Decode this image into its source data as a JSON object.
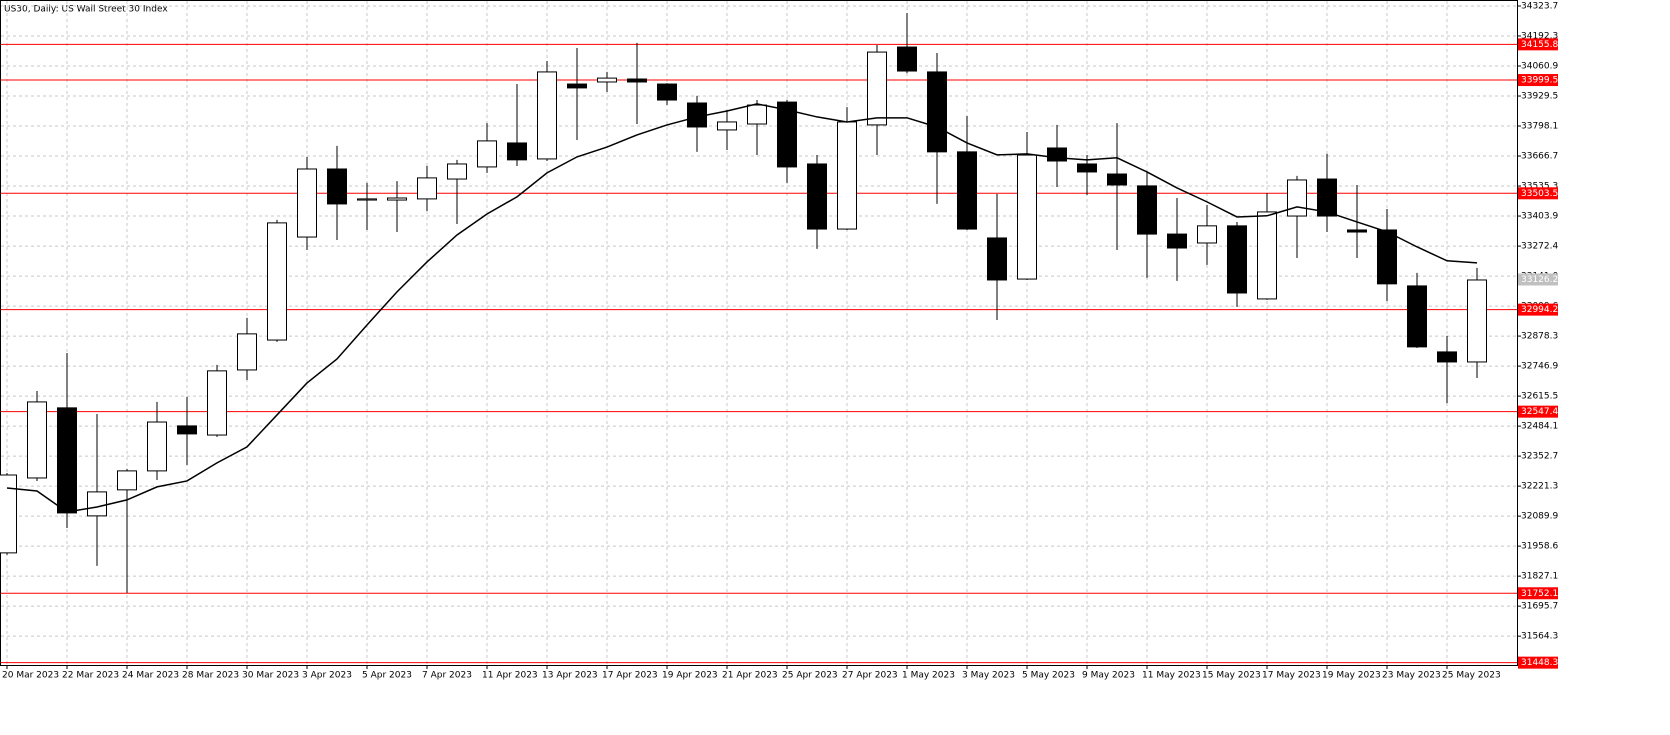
{
  "chart_data": {
    "type": "candlestick",
    "title": "US30, Daily:  US Wall Street 30 Index",
    "x": [
      "20 Mar 2023",
      null,
      "22 Mar 2023",
      null,
      "24 Mar 2023",
      null,
      "28 Mar 2023",
      null,
      "30 Mar 2023",
      null,
      "3 Apr 2023",
      null,
      "5 Apr 2023",
      null,
      "7 Apr 2023",
      null,
      "11 Apr 2023",
      null,
      "13 Apr 2023",
      null,
      "17 Apr 2023",
      null,
      "19 Apr 2023",
      null,
      "21 Apr 2023",
      null,
      "25 Apr 2023",
      null,
      "27 Apr 2023",
      null,
      "1 May 2023",
      null,
      "3 May 2023",
      null,
      "5 May 2023",
      null,
      "9 May 2023",
      null,
      "11 May 2023",
      null,
      "15 May 2023",
      null,
      "17 May 2023",
      null,
      "19 May 2023",
      null,
      "23 May 2023",
      null,
      "25 May 2023",
      null
    ],
    "open": [
      31929,
      32257,
      32564,
      32091,
      32205,
      32288,
      32485,
      32445,
      32730,
      32861,
      33312,
      33610,
      33474,
      33474,
      33479,
      33566,
      33619,
      33724,
      33654,
      33982,
      33991,
      34004,
      33982,
      33899,
      33781,
      33807,
      33903,
      33632,
      33347,
      33803,
      34144,
      34035,
      33685,
      33308,
      33128,
      33702,
      33632,
      33588,
      33536,
      33325,
      33286,
      33361,
      33041,
      33404,
      33566,
      33343,
      33343,
      33098,
      32809,
      32765
    ],
    "high": [
      32279,
      32638,
      32804,
      32537,
      32297,
      32590,
      32612,
      32752,
      32958,
      33387,
      33663,
      33711,
      33549,
      33557,
      33623,
      33650,
      33811,
      33982,
      34083,
      34140,
      34035,
      34162,
      33986,
      33930,
      33868,
      33912,
      33912,
      33671,
      33881,
      34153,
      34293,
      34118,
      33842,
      33501,
      33772,
      33803,
      33671,
      33811,
      33597,
      33483,
      33453,
      33378,
      33505,
      33580,
      33676,
      33540,
      33435,
      33155,
      32879,
      33177
    ],
    "low": [
      31920,
      32244,
      32038,
      31872,
      31754,
      32248,
      32314,
      32437,
      32686,
      32853,
      33255,
      33299,
      33343,
      33334,
      33426,
      33369,
      33593,
      33623,
      33645,
      33737,
      33947,
      33807,
      33890,
      33685,
      33693,
      33671,
      33549,
      33260,
      33343,
      33671,
      34030,
      33457,
      33343,
      32949,
      33124,
      33531,
      33496,
      33255,
      33133,
      33120,
      33190,
      33006,
      33037,
      33220,
      33334,
      33220,
      33032,
      32826,
      32585,
      32695
    ],
    "close": [
      32270,
      32590,
      32104,
      32196,
      32288,
      32502,
      32450,
      32726,
      32888,
      33374,
      33610,
      33457,
      33479,
      33483,
      33571,
      33632,
      33733,
      33650,
      34035,
      33965,
      34008,
      33991,
      33912,
      33794,
      33816,
      33890,
      33619,
      33347,
      33816,
      34122,
      34039,
      33685,
      33347,
      33124,
      33671,
      33645,
      33597,
      33540,
      33325,
      33264,
      33361,
      33067,
      33422,
      33562,
      33404,
      33334,
      33107,
      32831,
      32765,
      33124
    ],
    "ma": {
      "color": "#000000",
      "values": [
        32213,
        32200,
        32108,
        32130,
        32161,
        32218,
        32244,
        32323,
        32393,
        32533,
        32673,
        32778,
        32927,
        33072,
        33203,
        33321,
        33413,
        33488,
        33593,
        33663,
        33706,
        33759,
        33803,
        33838,
        33864,
        33895,
        33869,
        33838,
        33816,
        33834,
        33834,
        33794,
        33724,
        33672,
        33676,
        33659,
        33650,
        33659,
        33597,
        33527,
        33466,
        33400,
        33405,
        33444,
        33422,
        33378,
        33335,
        33269,
        33208,
        33199
      ]
    },
    "up_color": "#ffffff",
    "down_color": "#000000",
    "ylim": [
      31438,
      34350
    ],
    "yticks": [
      34323.7,
      34192.3,
      34060.9,
      33929.5,
      33798.1,
      33666.7,
      33535.3,
      33403.9,
      33272.4,
      {
        "value": 33141,
        "label": "33141.0"
      },
      33009.6,
      32878.3,
      32746.9,
      32615.5,
      32484.1,
      32352.7,
      32221.3,
      32089.9,
      31958.6,
      31827.1,
      31695.7,
      31564.3
    ],
    "grid": true,
    "levels": {
      "color": "#ff0000",
      "values": [
        34155.8,
        33999.5,
        33503.5,
        32994.2,
        32547.4,
        31752.1,
        31448.3
      ]
    },
    "current_price": {
      "color": "#c0c0c0",
      "value": 33126.2
    }
  }
}
